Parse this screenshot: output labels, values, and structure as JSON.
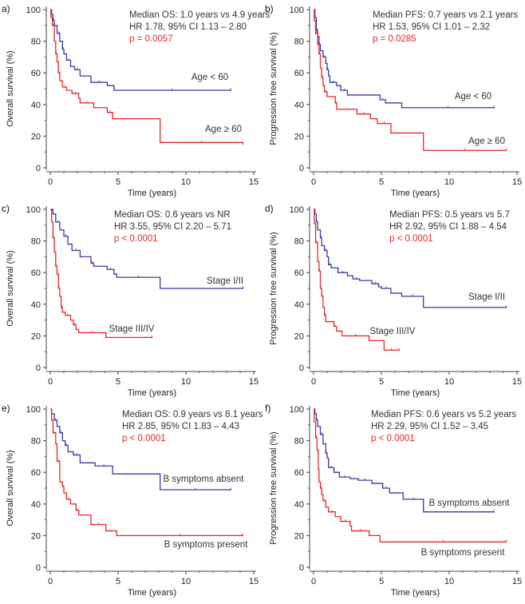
{
  "colors": {
    "group1": "#3a3a9e",
    "group2": "#e8262a",
    "p_value": "#e8262a",
    "axis": "#444444"
  },
  "chart_data": [
    {
      "panel": "a)",
      "type": "line",
      "subtype": "kaplan-meier step",
      "xlabel": "Time (years)",
      "ylabel": "Overall survival (%)",
      "xlim": [
        0,
        15
      ],
      "ylim": [
        0,
        100
      ],
      "xticks": [
        "0",
        "5",
        "10",
        "15"
      ],
      "yticks": [
        "0",
        "20",
        "40",
        "60",
        "80",
        "100"
      ],
      "annotation": [
        "Median OS: 1.0 years vs 4.9 years",
        "HR 1.78, 95% CI 1.13 – 2.80",
        "p = 0.0057"
      ],
      "series": [
        {
          "name": "Age < 60",
          "color": "#3a3a9e",
          "points": [
            [
              0,
              100
            ],
            [
              0.1,
              97
            ],
            [
              0.2,
              93
            ],
            [
              0.3,
              90
            ],
            [
              0.5,
              85
            ],
            [
              0.7,
              80
            ],
            [
              0.9,
              75
            ],
            [
              1.0,
              72
            ],
            [
              1.2,
              68
            ],
            [
              1.5,
              64
            ],
            [
              1.8,
              62
            ],
            [
              2.2,
              58
            ],
            [
              3.0,
              54
            ],
            [
              4.2,
              52
            ],
            [
              4.7,
              49
            ],
            [
              13.3,
              49
            ]
          ]
        },
        {
          "name": "Age ≥ 60",
          "color": "#e8262a",
          "points": [
            [
              0,
              100
            ],
            [
              0.05,
              95
            ],
            [
              0.15,
              90
            ],
            [
              0.3,
              80
            ],
            [
              0.4,
              72
            ],
            [
              0.5,
              67
            ],
            [
              0.6,
              60
            ],
            [
              0.7,
              55
            ],
            [
              0.9,
              51
            ],
            [
              1.2,
              49
            ],
            [
              1.6,
              47
            ],
            [
              2.1,
              44
            ],
            [
              2.2,
              41
            ],
            [
              3.2,
              38
            ],
            [
              4.2,
              35
            ],
            [
              4.6,
              31
            ],
            [
              8.1,
              16
            ],
            [
              14.2,
              15
            ]
          ]
        }
      ]
    },
    {
      "panel": "b)",
      "type": "line",
      "subtype": "kaplan-meier step",
      "xlabel": "Time (years)",
      "ylabel": "Progression free survival (%)",
      "xlim": [
        0,
        15
      ],
      "ylim": [
        0,
        100
      ],
      "xticks": [
        "0",
        "5",
        "10",
        "15"
      ],
      "yticks": [
        "0",
        "20",
        "40",
        "60",
        "80",
        "100"
      ],
      "annotation": [
        "Median PFS: 0.7 years vs 2.1 years",
        "HR 1.53, 95% CI 1.01 – 2.32",
        "p = 0.0285"
      ],
      "series": [
        {
          "name": "Age < 60",
          "color": "#3a3a9e",
          "points": [
            [
              0,
              100
            ],
            [
              0.1,
              95
            ],
            [
              0.2,
              87
            ],
            [
              0.3,
              83
            ],
            [
              0.4,
              78
            ],
            [
              0.5,
              74
            ],
            [
              0.7,
              70
            ],
            [
              0.9,
              66
            ],
            [
              1.0,
              62
            ],
            [
              1.1,
              58
            ],
            [
              1.2,
              54
            ],
            [
              1.7,
              52
            ],
            [
              2.0,
              49
            ],
            [
              2.5,
              46
            ],
            [
              4.9,
              43
            ],
            [
              5.3,
              41
            ],
            [
              6.5,
              38
            ],
            [
              13.3,
              38
            ]
          ]
        },
        {
          "name": "Age ≥ 60",
          "color": "#e8262a",
          "points": [
            [
              0,
              100
            ],
            [
              0.05,
              93
            ],
            [
              0.15,
              85
            ],
            [
              0.3,
              78
            ],
            [
              0.4,
              72
            ],
            [
              0.5,
              63
            ],
            [
              0.6,
              57
            ],
            [
              0.7,
              52
            ],
            [
              0.8,
              48
            ],
            [
              1.0,
              45
            ],
            [
              1.6,
              41
            ],
            [
              1.7,
              37
            ],
            [
              3.2,
              34
            ],
            [
              4.2,
              31
            ],
            [
              4.7,
              28
            ],
            [
              5.7,
              22
            ],
            [
              8.1,
              11
            ],
            [
              14.2,
              11
            ]
          ]
        }
      ]
    },
    {
      "panel": "c)",
      "type": "line",
      "subtype": "kaplan-meier step",
      "xlabel": "Time (years)",
      "ylabel": "Overall survival (%)",
      "xlim": [
        0,
        15
      ],
      "ylim": [
        0,
        100
      ],
      "xticks": [
        "0",
        "5",
        "10",
        "15"
      ],
      "yticks": [
        "0",
        "20",
        "40",
        "60",
        "80",
        "100"
      ],
      "annotation": [
        "Median OS: 0.6 years vs NR",
        "HR 3.55, 95% CI 2.20 – 5.71",
        "p < 0.0001"
      ],
      "series": [
        {
          "name": "Stage I/II",
          "color": "#3a3a9e",
          "points": [
            [
              0,
              100
            ],
            [
              0.2,
              97
            ],
            [
              0.4,
              92
            ],
            [
              0.7,
              87
            ],
            [
              1.0,
              83
            ],
            [
              1.3,
              78
            ],
            [
              1.6,
              74
            ],
            [
              2.2,
              70
            ],
            [
              3.0,
              66
            ],
            [
              3.2,
              64
            ],
            [
              4.2,
              62
            ],
            [
              4.7,
              59
            ],
            [
              4.9,
              57
            ],
            [
              8.1,
              50
            ],
            [
              14.2,
              50
            ]
          ]
        },
        {
          "name": "Stage III/IV",
          "color": "#e8262a",
          "points": [
            [
              0,
              100
            ],
            [
              0.1,
              92
            ],
            [
              0.2,
              82
            ],
            [
              0.3,
              73
            ],
            [
              0.4,
              64
            ],
            [
              0.5,
              59
            ],
            [
              0.6,
              50
            ],
            [
              0.7,
              45
            ],
            [
              0.8,
              38
            ],
            [
              0.9,
              35
            ],
            [
              1.1,
              33
            ],
            [
              1.5,
              30
            ],
            [
              1.7,
              27
            ],
            [
              1.9,
              24
            ],
            [
              2.1,
              22
            ],
            [
              4.1,
              19
            ],
            [
              7.5,
              19
            ]
          ]
        }
      ]
    },
    {
      "panel": "d)",
      "type": "line",
      "subtype": "kaplan-meier step",
      "xlabel": "Time (years)",
      "ylabel": "Progression free survival (%)",
      "xlim": [
        0,
        15
      ],
      "ylim": [
        0,
        100
      ],
      "xticks": [
        "0",
        "5",
        "10",
        "15"
      ],
      "yticks": [
        "0",
        "20",
        "40",
        "60",
        "80",
        "100"
      ],
      "annotation": [
        "Median PFS: 0.5 years vs 5.7",
        "HR 2.92, 95% CI 1.88 – 4.54",
        "p < 0.0001"
      ],
      "series": [
        {
          "name": "Stage I/II",
          "color": "#3a3a9e",
          "points": [
            [
              0,
              100
            ],
            [
              0.1,
              97
            ],
            [
              0.2,
              92
            ],
            [
              0.3,
              87
            ],
            [
              0.5,
              82
            ],
            [
              0.6,
              77
            ],
            [
              0.8,
              74
            ],
            [
              1.0,
              70
            ],
            [
              1.1,
              65
            ],
            [
              1.3,
              63
            ],
            [
              1.8,
              60
            ],
            [
              2.5,
              58
            ],
            [
              2.9,
              56
            ],
            [
              3.4,
              55
            ],
            [
              4.3,
              53
            ],
            [
              4.8,
              51
            ],
            [
              5.0,
              50
            ],
            [
              5.7,
              47
            ],
            [
              6.5,
              45
            ],
            [
              8.1,
              38
            ],
            [
              14.2,
              38
            ]
          ]
        },
        {
          "name": "Stage III/IV",
          "color": "#e8262a",
          "points": [
            [
              0,
              100
            ],
            [
              0.05,
              91
            ],
            [
              0.15,
              79
            ],
            [
              0.3,
              67
            ],
            [
              0.4,
              61
            ],
            [
              0.5,
              50
            ],
            [
              0.6,
              45
            ],
            [
              0.7,
              38
            ],
            [
              0.8,
              33
            ],
            [
              0.9,
              29
            ],
            [
              1.5,
              26
            ],
            [
              1.7,
              23
            ],
            [
              2.1,
              20
            ],
            [
              4.1,
              17
            ],
            [
              5.2,
              11
            ],
            [
              6.3,
              11
            ]
          ]
        }
      ]
    },
    {
      "panel": "e)",
      "type": "line",
      "subtype": "kaplan-meier step",
      "xlabel": "Time (years)",
      "ylabel": "Overall survival (%)",
      "xlim": [
        0,
        15
      ],
      "ylim": [
        0,
        100
      ],
      "xticks": [
        "0",
        "5",
        "10",
        "15"
      ],
      "yticks": [
        "0",
        "20",
        "40",
        "60",
        "80",
        "100"
      ],
      "annotation": [
        "Median OS: 0.9 years vs 8.1 years",
        "HR 2.85, 95% CI 1.83 – 4.43",
        "p < 0.0001"
      ],
      "series": [
        {
          "name": "B symptoms absent",
          "color": "#3a3a9e",
          "points": [
            [
              0,
              100
            ],
            [
              0.1,
              97
            ],
            [
              0.3,
              93
            ],
            [
              0.5,
              89
            ],
            [
              0.7,
              85
            ],
            [
              0.9,
              80
            ],
            [
              1.1,
              77
            ],
            [
              1.3,
              73
            ],
            [
              1.7,
              71
            ],
            [
              2.2,
              66
            ],
            [
              3.3,
              64
            ],
            [
              4.6,
              59
            ],
            [
              8.1,
              49
            ],
            [
              13.3,
              49
            ]
          ]
        },
        {
          "name": "B symptoms present",
          "color": "#e8262a",
          "points": [
            [
              0,
              100
            ],
            [
              0.1,
              93
            ],
            [
              0.2,
              85
            ],
            [
              0.4,
              78
            ],
            [
              0.5,
              67
            ],
            [
              0.7,
              54
            ],
            [
              0.9,
              51
            ],
            [
              1.0,
              47
            ],
            [
              1.2,
              43
            ],
            [
              1.5,
              40
            ],
            [
              1.9,
              36
            ],
            [
              2.1,
              33
            ],
            [
              3.0,
              27
            ],
            [
              4.1,
              23
            ],
            [
              4.9,
              20
            ],
            [
              14.2,
              20
            ]
          ]
        }
      ]
    },
    {
      "panel": "f)",
      "type": "line",
      "subtype": "kaplan-meier step",
      "xlabel": "Time (years)",
      "ylabel": "Progression free survival (%)",
      "xlim": [
        0,
        15
      ],
      "ylim": [
        0,
        100
      ],
      "xticks": [
        "0",
        "5",
        "10",
        "15"
      ],
      "yticks": [
        "0",
        "20",
        "40",
        "60",
        "80",
        "100"
      ],
      "annotation": [
        "Median PFS: 0.6 years vs 5.2 years",
        "HR 2.29, 95% CI 1.52 – 3.45",
        "p < 0.0001"
      ],
      "series": [
        {
          "name": "B symptoms absent",
          "color": "#3a3a9e",
          "points": [
            [
              0,
              100
            ],
            [
              0.1,
              97
            ],
            [
              0.2,
              93
            ],
            [
              0.3,
              89
            ],
            [
              0.5,
              84
            ],
            [
              0.7,
              78
            ],
            [
              0.9,
              72
            ],
            [
              1.0,
              69
            ],
            [
              1.1,
              63
            ],
            [
              1.5,
              60
            ],
            [
              1.9,
              57
            ],
            [
              2.7,
              56
            ],
            [
              3.3,
              55
            ],
            [
              4.3,
              53
            ],
            [
              5.1,
              50
            ],
            [
              5.6,
              47
            ],
            [
              6.6,
              43
            ],
            [
              8.1,
              35
            ],
            [
              13.3,
              35
            ]
          ]
        },
        {
          "name": "B symptoms present",
          "color": "#e8262a",
          "points": [
            [
              0,
              100
            ],
            [
              0.05,
              92
            ],
            [
              0.15,
              82
            ],
            [
              0.25,
              74
            ],
            [
              0.35,
              62
            ],
            [
              0.4,
              54
            ],
            [
              0.5,
              50
            ],
            [
              0.6,
              46
            ],
            [
              0.7,
              42
            ],
            [
              0.9,
              38
            ],
            [
              1.1,
              35
            ],
            [
              1.6,
              32
            ],
            [
              2.0,
              29
            ],
            [
              2.7,
              26
            ],
            [
              2.8,
              23
            ],
            [
              4.1,
              20
            ],
            [
              4.9,
              16
            ],
            [
              14.2,
              16
            ]
          ]
        }
      ]
    }
  ]
}
